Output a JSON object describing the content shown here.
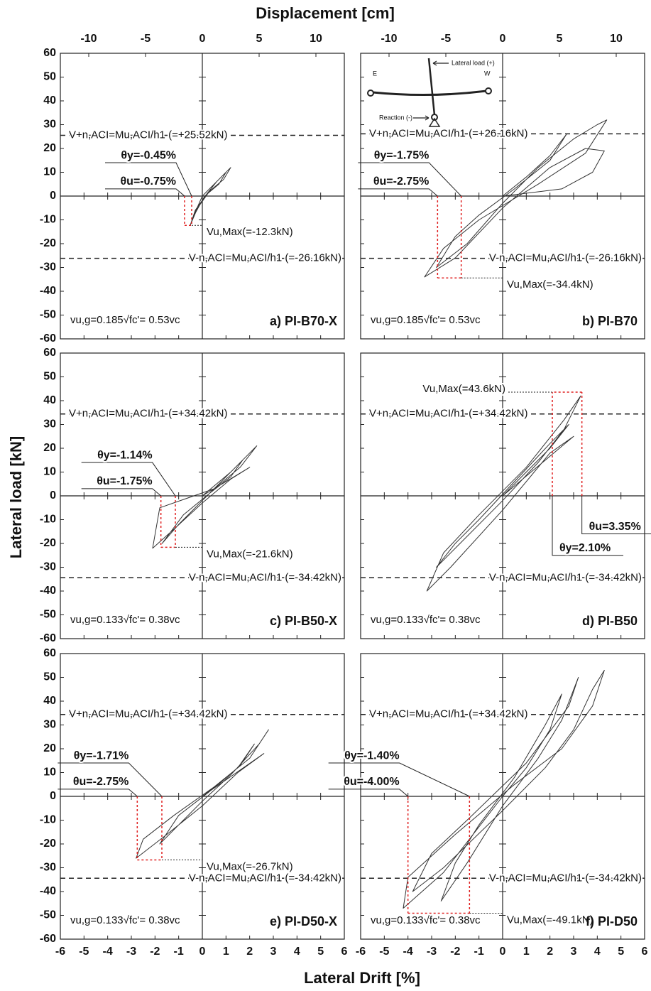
{
  "figure": {
    "x2label": "Displacement [cm]",
    "ylabel": "Lateral load [kN]",
    "xlabel": "Lateral Drift [%]"
  },
  "inset": {
    "east": "E",
    "west": "W",
    "load": "Lateral load (+)",
    "reaction": "Reaction (-)"
  },
  "chart_data": [
    {
      "type": "line",
      "label": "a) PI-B70-X",
      "xlim": [
        -6,
        6
      ],
      "xticks": [
        -6,
        -5,
        -4,
        -3,
        -2,
        -1,
        0,
        1,
        2,
        3,
        4,
        5,
        6
      ],
      "ylim": [
        -60,
        60
      ],
      "yticks": [
        -60,
        -50,
        -40,
        -30,
        -20,
        -10,
        0,
        10,
        20,
        30,
        40,
        50,
        60
      ],
      "x2lim": [
        -12.5,
        12.5
      ],
      "x2ticks": [
        -10,
        -5,
        0,
        5,
        10
      ],
      "color": "#333333",
      "x": [
        0,
        0.4,
        0.8,
        1.2,
        0.9,
        0.3,
        -0.2,
        -0.5,
        -0.3,
        0.2,
        0.6,
        1.0,
        0.7,
        0.1,
        -0.4,
        0
      ],
      "values": [
        0,
        4,
        8,
        12,
        7,
        2,
        -5,
        -12,
        -6,
        1,
        6,
        10,
        5,
        0,
        -9,
        0
      ],
      "vn_pos": {
        "value": 25.52,
        "label": "V+n,ACI=Mu,ACI/h1 (=+25.52kN)"
      },
      "vn_neg": {
        "value": -26.16,
        "label": "V-n,ACI=Mu,ACI/h1 (=-26.16kN)"
      },
      "theta_y": {
        "value": -0.45,
        "label": "θy=-0.45%"
      },
      "theta_u": {
        "value": -0.75,
        "label": "θu=-0.75%"
      },
      "vu_max": {
        "value": -12.3,
        "label": "Vu,Max(=-12.3kN)"
      },
      "note": "vu,g=0.185√fc'= 0.53vc"
    },
    {
      "type": "line",
      "label": "b) PI-B70",
      "xlim": [
        -6,
        6
      ],
      "xticks": [
        -6,
        -5,
        -4,
        -3,
        -2,
        -1,
        0,
        1,
        2,
        3,
        4,
        5,
        6
      ],
      "ylim": [
        -60,
        60
      ],
      "yticks": [
        -60,
        -50,
        -40,
        -30,
        -20,
        -10,
        0,
        10,
        20,
        30,
        40,
        50,
        60
      ],
      "x2lim": [
        -12.5,
        12.5
      ],
      "x2ticks": [
        -10,
        -5,
        0,
        5,
        10
      ],
      "color": "#333333",
      "x": [
        0,
        1,
        2,
        2.7,
        2,
        0.5,
        -1,
        -2,
        -2.8,
        -1.5,
        0,
        1.5,
        3,
        4,
        4.4,
        3.5,
        1.5,
        -1,
        -2.5,
        -3.3,
        -2,
        0,
        2,
        3.5,
        4.3,
        3.8,
        2.5,
        0
      ],
      "values": [
        0,
        8,
        17,
        26,
        15,
        3,
        -8,
        -17,
        -30,
        -20,
        -3,
        12,
        24,
        30,
        32,
        18,
        5,
        -10,
        -22,
        -34,
        -26,
        -5,
        12,
        20,
        19,
        10,
        3,
        0
      ],
      "vn_pos": {
        "value": 26.16,
        "label": "V+n,ACI=Mu,ACI/h1 (=+26.16kN)"
      },
      "vn_neg": {
        "value": -26.16,
        "label": "V-n,ACI=Mu,ACI/h1 (=-26.16kN)"
      },
      "theta_y": {
        "value": -1.75,
        "label": "θy=-1.75%"
      },
      "theta_u": {
        "value": -2.75,
        "label": "θu=-2.75%"
      },
      "vu_max": {
        "value": -34.4,
        "label": "Vu,Max(=-34.4kN)"
      },
      "note": "vu,g=0.185√fc'= 0.53vc"
    },
    {
      "type": "line",
      "label": "c) PI-B50-X",
      "xlim": [
        -6,
        6
      ],
      "xticks": [
        -6,
        -5,
        -4,
        -3,
        -2,
        -1,
        0,
        1,
        2,
        3,
        4,
        5,
        6
      ],
      "ylim": [
        -60,
        60
      ],
      "yticks": [
        -60,
        -50,
        -40,
        -30,
        -20,
        -10,
        0,
        10,
        20,
        30,
        40,
        50,
        60
      ],
      "color": "#333333",
      "x": [
        0,
        0.6,
        1.2,
        1.7,
        1.2,
        0.3,
        -0.8,
        -1.7,
        -1,
        0,
        1,
        2,
        2.3,
        1.6,
        0.5,
        -1.8,
        -2.1,
        -1.2,
        0,
        1.2,
        2,
        0
      ],
      "values": [
        0,
        5,
        10,
        15,
        8,
        1,
        -8,
        -20,
        -12,
        -2,
        8,
        18,
        21,
        12,
        3,
        -5,
        -22,
        -14,
        -3,
        7,
        12,
        0
      ],
      "vn_pos": {
        "value": 34.42,
        "label": "V+n,ACI=Mu,ACI/h1 (=+34.42kN)"
      },
      "vn_neg": {
        "value": -34.42,
        "label": "V-n,ACI=Mu,ACI/h1 (=-34.42kN)"
      },
      "theta_y": {
        "value": -1.14,
        "label": "θy=-1.14%"
      },
      "theta_u": {
        "value": -1.75,
        "label": "θu=-1.75%"
      },
      "vu_max": {
        "value": -21.6,
        "label": "Vu,Max(=-21.6kN)"
      },
      "note": "vu,g=0.133√fc'= 0.38vc"
    },
    {
      "type": "line",
      "label": "d) PI-B50",
      "xlim": [
        -6,
        6
      ],
      "xticks": [
        -6,
        -5,
        -4,
        -3,
        -2,
        -1,
        0,
        1,
        2,
        3,
        4,
        5,
        6
      ],
      "ylim": [
        -60,
        60
      ],
      "yticks": [
        -60,
        -50,
        -40,
        -30,
        -20,
        -10,
        0,
        10,
        20,
        30,
        40,
        50,
        60
      ],
      "color": "#333333",
      "x": [
        0,
        1,
        2,
        2.8,
        2,
        0.5,
        -1,
        -2,
        -2.8,
        -1.8,
        0,
        1.5,
        2.6,
        3.3,
        2.6,
        1,
        -1,
        -2.5,
        -3.2,
        -2.2,
        0,
        2,
        3,
        0
      ],
      "values": [
        0,
        10,
        20,
        30,
        22,
        6,
        -10,
        -20,
        -30,
        -20,
        -2,
        14,
        28,
        42,
        32,
        12,
        -8,
        -24,
        -40,
        -30,
        -6,
        18,
        25,
        0
      ],
      "vn_pos": {
        "value": 34.42,
        "label": "V+n,ACI=Mu,ACI/h1 (=+34.42kN)"
      },
      "vn_neg": {
        "value": -34.42,
        "label": "V-n,ACI=Mu,ACI/h1 (=-34.42kN)"
      },
      "theta_y": {
        "value": 2.1,
        "label": "θy=2.10%"
      },
      "theta_u": {
        "value": 3.35,
        "label": "θu=3.35%"
      },
      "vu_max": {
        "value": 43.6,
        "label": "Vu,Max(=43.6kN)"
      },
      "note": "vu,g=0.133√fc'= 0.38vc"
    },
    {
      "type": "line",
      "label": "e) PI-D50-X",
      "xlim": [
        -6,
        6
      ],
      "xticks": [
        -6,
        -5,
        -4,
        -3,
        -2,
        -1,
        0,
        1,
        2,
        3,
        4,
        5,
        6
      ],
      "ylim": [
        -60,
        60
      ],
      "yticks": [
        -60,
        -50,
        -40,
        -30,
        -20,
        -10,
        0,
        10,
        20,
        30,
        40,
        50,
        60
      ],
      "color": "#333333",
      "x": [
        0,
        0.8,
        1.6,
        2.2,
        1.5,
        0.3,
        -1,
        -1.8,
        -1,
        0,
        1.2,
        2.4,
        2.8,
        2,
        0.5,
        -1.2,
        -2.5,
        -2.8,
        -1.5,
        0,
        1.5,
        2.6,
        0
      ],
      "values": [
        0,
        6,
        13,
        22,
        12,
        2,
        -8,
        -20,
        -12,
        -2,
        9,
        22,
        28,
        16,
        4,
        -8,
        -18,
        -26,
        -16,
        -4,
        10,
        18,
        0
      ],
      "vn_pos": {
        "value": 34.42,
        "label": "V+n,ACI=Mu,ACI/h1 (=+34.42kN)"
      },
      "vn_neg": {
        "value": -34.42,
        "label": "V-n,ACI=Mu,ACI/h1 (=-34.42kN)"
      },
      "theta_y": {
        "value": -1.71,
        "label": "θy=-1.71%"
      },
      "theta_u": {
        "value": -2.75,
        "label": "θu=-2.75%"
      },
      "vu_max": {
        "value": -26.7,
        "label": "Vu,Max(=-26.7kN)"
      },
      "note": "vu,g=0.133√fc'= 0.38vc"
    },
    {
      "type": "line",
      "label": "f) PI-D50",
      "xlim": [
        -6,
        6
      ],
      "xticks": [
        -6,
        -5,
        -4,
        -3,
        -2,
        -1,
        0,
        1,
        2,
        3,
        4,
        5,
        6
      ],
      "ylim": [
        -60,
        60
      ],
      "yticks": [
        -60,
        -50,
        -40,
        -30,
        -20,
        -10,
        0,
        10,
        20,
        30,
        40,
        50,
        60
      ],
      "color": "#333333",
      "x": [
        0,
        1,
        2,
        2.5,
        1.8,
        0.5,
        -1,
        -2,
        -2.6,
        -1.5,
        0,
        1.5,
        2.5,
        3.2,
        2.8,
        1,
        -1.5,
        -3,
        -3.8,
        -2.5,
        0,
        1.8,
        3,
        3.8,
        4.3,
        3.8,
        2.5,
        0.5,
        -2,
        -4,
        -4.2,
        -2.5,
        0
      ],
      "values": [
        0,
        12,
        28,
        43,
        30,
        8,
        -12,
        -28,
        -44,
        -28,
        -4,
        16,
        32,
        50,
        38,
        14,
        -10,
        -24,
        -40,
        -30,
        -6,
        12,
        28,
        45,
        53,
        38,
        20,
        5,
        -16,
        -34,
        -47,
        -32,
        0
      ],
      "vn_pos": {
        "value": 34.42,
        "label": "V+n,ACI=Mu,ACI/h1 (=+34.42kN)"
      },
      "vn_neg": {
        "value": -34.42,
        "label": "V-n,ACI=Mu,ACI/h1 (=-34.42kN)"
      },
      "theta_y": {
        "value": -1.4,
        "label": "θy=-1.40%"
      },
      "theta_u": {
        "value": -4,
        "label": "θu=-4.00%"
      },
      "vu_max": {
        "value": -49.1,
        "label": "Vu,Max(=-49.1kN)"
      },
      "note": "vu,g=0.133√fc'= 0.38vc"
    }
  ]
}
